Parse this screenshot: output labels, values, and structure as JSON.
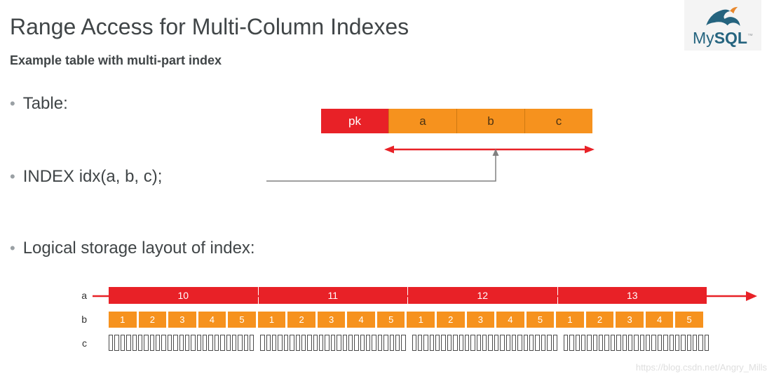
{
  "slide": {
    "title": "Range Access for Multi-Column Indexes",
    "subtitle": "Example table with multi-part index",
    "watermark": "https://blog.csdn.net/Angry_Mills"
  },
  "logo": {
    "text_my": "My",
    "text_sql": "SQL",
    "tm": "™"
  },
  "bullets": [
    {
      "label": "Table:"
    },
    {
      "label": "INDEX idx(a, b, c);"
    },
    {
      "label": "Logical storage layout of index:"
    }
  ],
  "table_diagram": {
    "cells": [
      {
        "label": "pk"
      },
      {
        "label": "a"
      },
      {
        "label": "b"
      },
      {
        "label": "c"
      }
    ]
  },
  "index_layout": {
    "row_labels": [
      "a",
      "b",
      "c"
    ],
    "a_values": [
      "10",
      "11",
      "12",
      "13"
    ],
    "b_values": [
      "1",
      "2",
      "3",
      "4",
      "5",
      "1",
      "2",
      "3",
      "4",
      "5",
      "1",
      "2",
      "3",
      "4",
      "5",
      "1",
      "2",
      "3",
      "4",
      "5"
    ],
    "c_groups": 4,
    "c_cells_per_group": 25
  },
  "colors": {
    "red": "#e82127",
    "orange": "#f6921e",
    "title_text": "#404547",
    "logo_blue": "#25647f",
    "logo_orange": "#e8882d"
  }
}
